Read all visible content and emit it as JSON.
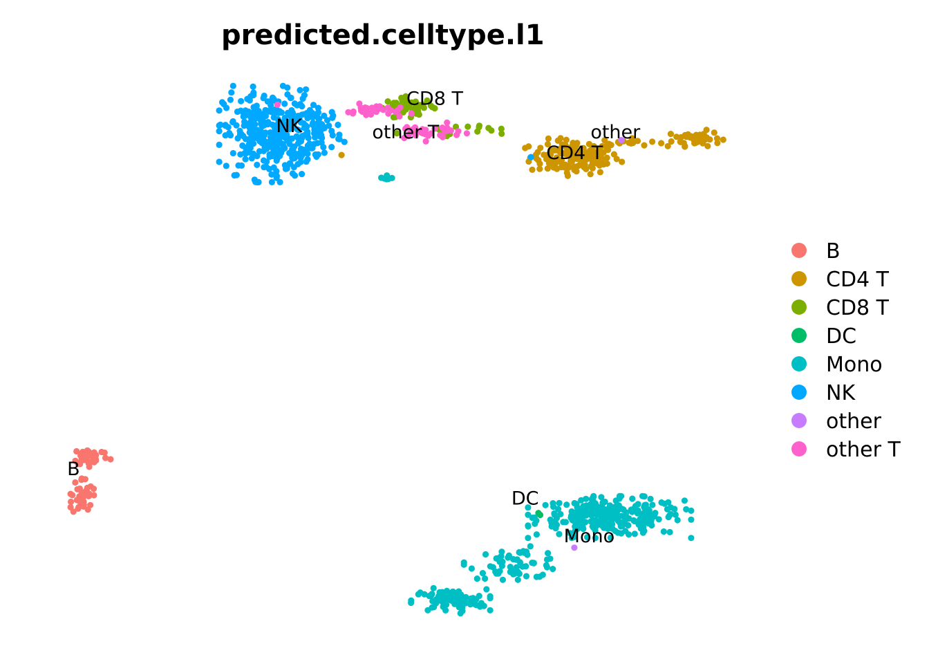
{
  "chart_data": {
    "type": "scatter",
    "title": "predicted.celltype.l1",
    "xlabel": "",
    "ylabel": "",
    "axes_visible": false,
    "grid": false,
    "legend_position": "right",
    "categories": [
      "B",
      "CD4 T",
      "CD8 T",
      "DC",
      "Mono",
      "NK",
      "other",
      "other T"
    ],
    "colors": {
      "B": "#F8766D",
      "CD4 T": "#CD9600",
      "CD8 T": "#7CAE00",
      "DC": "#00BE67",
      "Mono": "#00BFC4",
      "NK": "#00A9FF",
      "other": "#C77CFF",
      "other T": "#FF61CC"
    },
    "clusters": [
      {
        "name": "NK",
        "label": "NK",
        "label_x": 1.5,
        "label_y": 6.6,
        "blobs": [
          [
            0.8,
            6.5,
            1.7,
            2.3,
            330
          ],
          [
            2.5,
            6.7,
            0.9,
            1.2,
            70
          ]
        ]
      },
      {
        "name": "CD8 T",
        "label": "CD8 T",
        "label_x": 6.5,
        "label_y": 7.9,
        "blobs": [
          [
            5.6,
            7.8,
            0.9,
            0.5,
            55
          ],
          [
            7.0,
            6.7,
            2.0,
            0.3,
            20
          ]
        ]
      },
      {
        "name": "other T",
        "label": "other T",
        "label_x": 5.5,
        "label_y": 6.3,
        "blobs": [
          [
            4.5,
            7.6,
            1.2,
            0.35,
            30
          ],
          [
            6.2,
            6.6,
            1.4,
            0.45,
            30
          ]
        ]
      },
      {
        "name": "CD4 T",
        "label": "CD4 T",
        "label_x": 11.3,
        "label_y": 5.3,
        "blobs": [
          [
            11.3,
            5.4,
            1.7,
            0.9,
            150
          ],
          [
            15.5,
            6.3,
            0.9,
            0.4,
            45
          ],
          [
            13.3,
            6.1,
            1.2,
            0.2,
            15
          ]
        ]
      },
      {
        "name": "other",
        "label": "other",
        "label_x": 12.7,
        "label_y": 6.3,
        "blobs": [
          [
            12.9,
            6.2,
            0.1,
            0.1,
            1
          ],
          [
            11.3,
            -13.2,
            0.1,
            0.1,
            1
          ]
        ]
      },
      {
        "name": "Mono",
        "label": "Mono",
        "label_x": 11.8,
        "label_y": -13.0,
        "blobs": [
          [
            12.5,
            -11.8,
            2.8,
            1.0,
            260
          ],
          [
            9.3,
            -14.0,
            1.8,
            0.8,
            60
          ],
          [
            7.0,
            -15.8,
            1.4,
            0.6,
            90
          ],
          [
            4.8,
            4.4,
            0.3,
            0.2,
            8
          ]
        ]
      },
      {
        "name": "DC",
        "label": "DC",
        "label_x": 9.6,
        "label_y": -11.2,
        "blobs": [
          [
            10.1,
            -11.6,
            0.1,
            0.1,
            2
          ]
        ]
      },
      {
        "name": "B",
        "label": "B",
        "label_x": -5.9,
        "label_y": -9.8,
        "blobs": [
          [
            -5.3,
            -8.9,
            0.7,
            0.5,
            45
          ],
          [
            -5.6,
            -10.8,
            0.4,
            1.0,
            40
          ]
        ]
      }
    ],
    "xlim": [
      -7.0,
      17.2
    ],
    "ylim": [
      -17.5,
      9.6
    ],
    "x_outliers": [
      [
        3.3,
        5.5,
        "CD4 T"
      ],
      [
        9.8,
        5.4,
        "NK"
      ],
      [
        1.1,
        7.9,
        "other T"
      ]
    ]
  }
}
